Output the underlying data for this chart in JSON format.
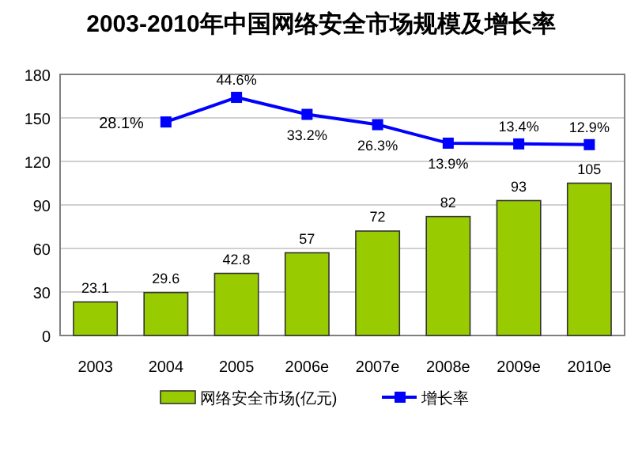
{
  "chart_data": {
    "type": "bar",
    "title": "2003-2010年中国网络安全市场规模及增长率",
    "categories": [
      "2003",
      "2004",
      "2005",
      "2006e",
      "2007e",
      "2008e",
      "2009e",
      "2010e"
    ],
    "series": [
      {
        "name": "网络安全市场(亿元)",
        "color": "#99cc00",
        "values": [
          23.1,
          29.6,
          42.8,
          57,
          72,
          82,
          93,
          105
        ],
        "value_labels": [
          "23.1",
          "29.6",
          "42.8",
          "57",
          "72",
          "82",
          "93",
          "105"
        ]
      },
      {
        "name": "增长率",
        "type": "line",
        "axis": "y2",
        "color": "#0000ff",
        "marker": "square",
        "values": [
          null,
          28.1,
          44.6,
          33.2,
          26.3,
          13.9,
          13.4,
          12.9
        ],
        "value_labels": [
          null,
          "28.1%",
          "44.6%",
          "33.2%",
          "26.3%",
          "13.9%",
          "13.4%",
          "12.9%"
        ]
      }
    ],
    "ylim": [
      0,
      180
    ],
    "yticks": [
      0,
      30,
      60,
      90,
      120,
      150,
      180
    ],
    "y2lim": [
      -115,
      60
    ],
    "grid": "y",
    "legend": "bottom"
  }
}
